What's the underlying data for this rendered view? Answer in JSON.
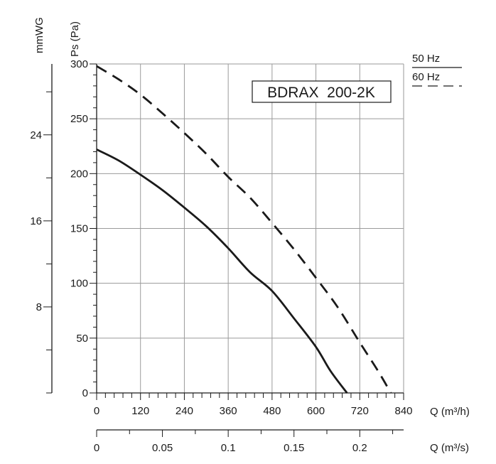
{
  "chart_data": {
    "type": "line",
    "title": "BDRAX  200-2K",
    "xlabel": "Q (m³/h)",
    "xlabel_secondary": "Q (m³/s)",
    "ylabel": "Ps (Pa)",
    "ylabel_secondary": "mmWG",
    "xlim": [
      0,
      840
    ],
    "ylim": [
      0,
      300
    ],
    "x_ticks": [
      0,
      120,
      240,
      360,
      480,
      600,
      720,
      840
    ],
    "y_ticks": [
      0,
      50,
      100,
      150,
      200,
      250,
      300
    ],
    "x2_ticks": [
      0,
      0.05,
      0.1,
      0.15,
      0.2
    ],
    "x2_tick_labels": [
      "0",
      "0.05",
      "0.1",
      "0.15",
      "0.2"
    ],
    "y2_ticks": [
      8,
      16,
      24
    ],
    "grid": true,
    "legend_position": "top-right",
    "series": [
      {
        "name": "50 Hz",
        "style": "solid",
        "color": "#1a1a1a",
        "x": [
          0,
          60,
          120,
          180,
          240,
          300,
          360,
          420,
          480,
          540,
          600,
          640,
          685
        ],
        "y": [
          222,
          212,
          199,
          185,
          169,
          152,
          132,
          110,
          93,
          68,
          42,
          20,
          0
        ]
      },
      {
        "name": "60 Hz",
        "style": "dashed",
        "color": "#1a1a1a",
        "x": [
          0,
          60,
          120,
          180,
          240,
          300,
          360,
          420,
          480,
          540,
          600,
          660,
          720,
          770,
          805
        ],
        "y": [
          298,
          286,
          272,
          255,
          237,
          218,
          197,
          178,
          155,
          131,
          105,
          78,
          46,
          20,
          0
        ]
      }
    ]
  }
}
